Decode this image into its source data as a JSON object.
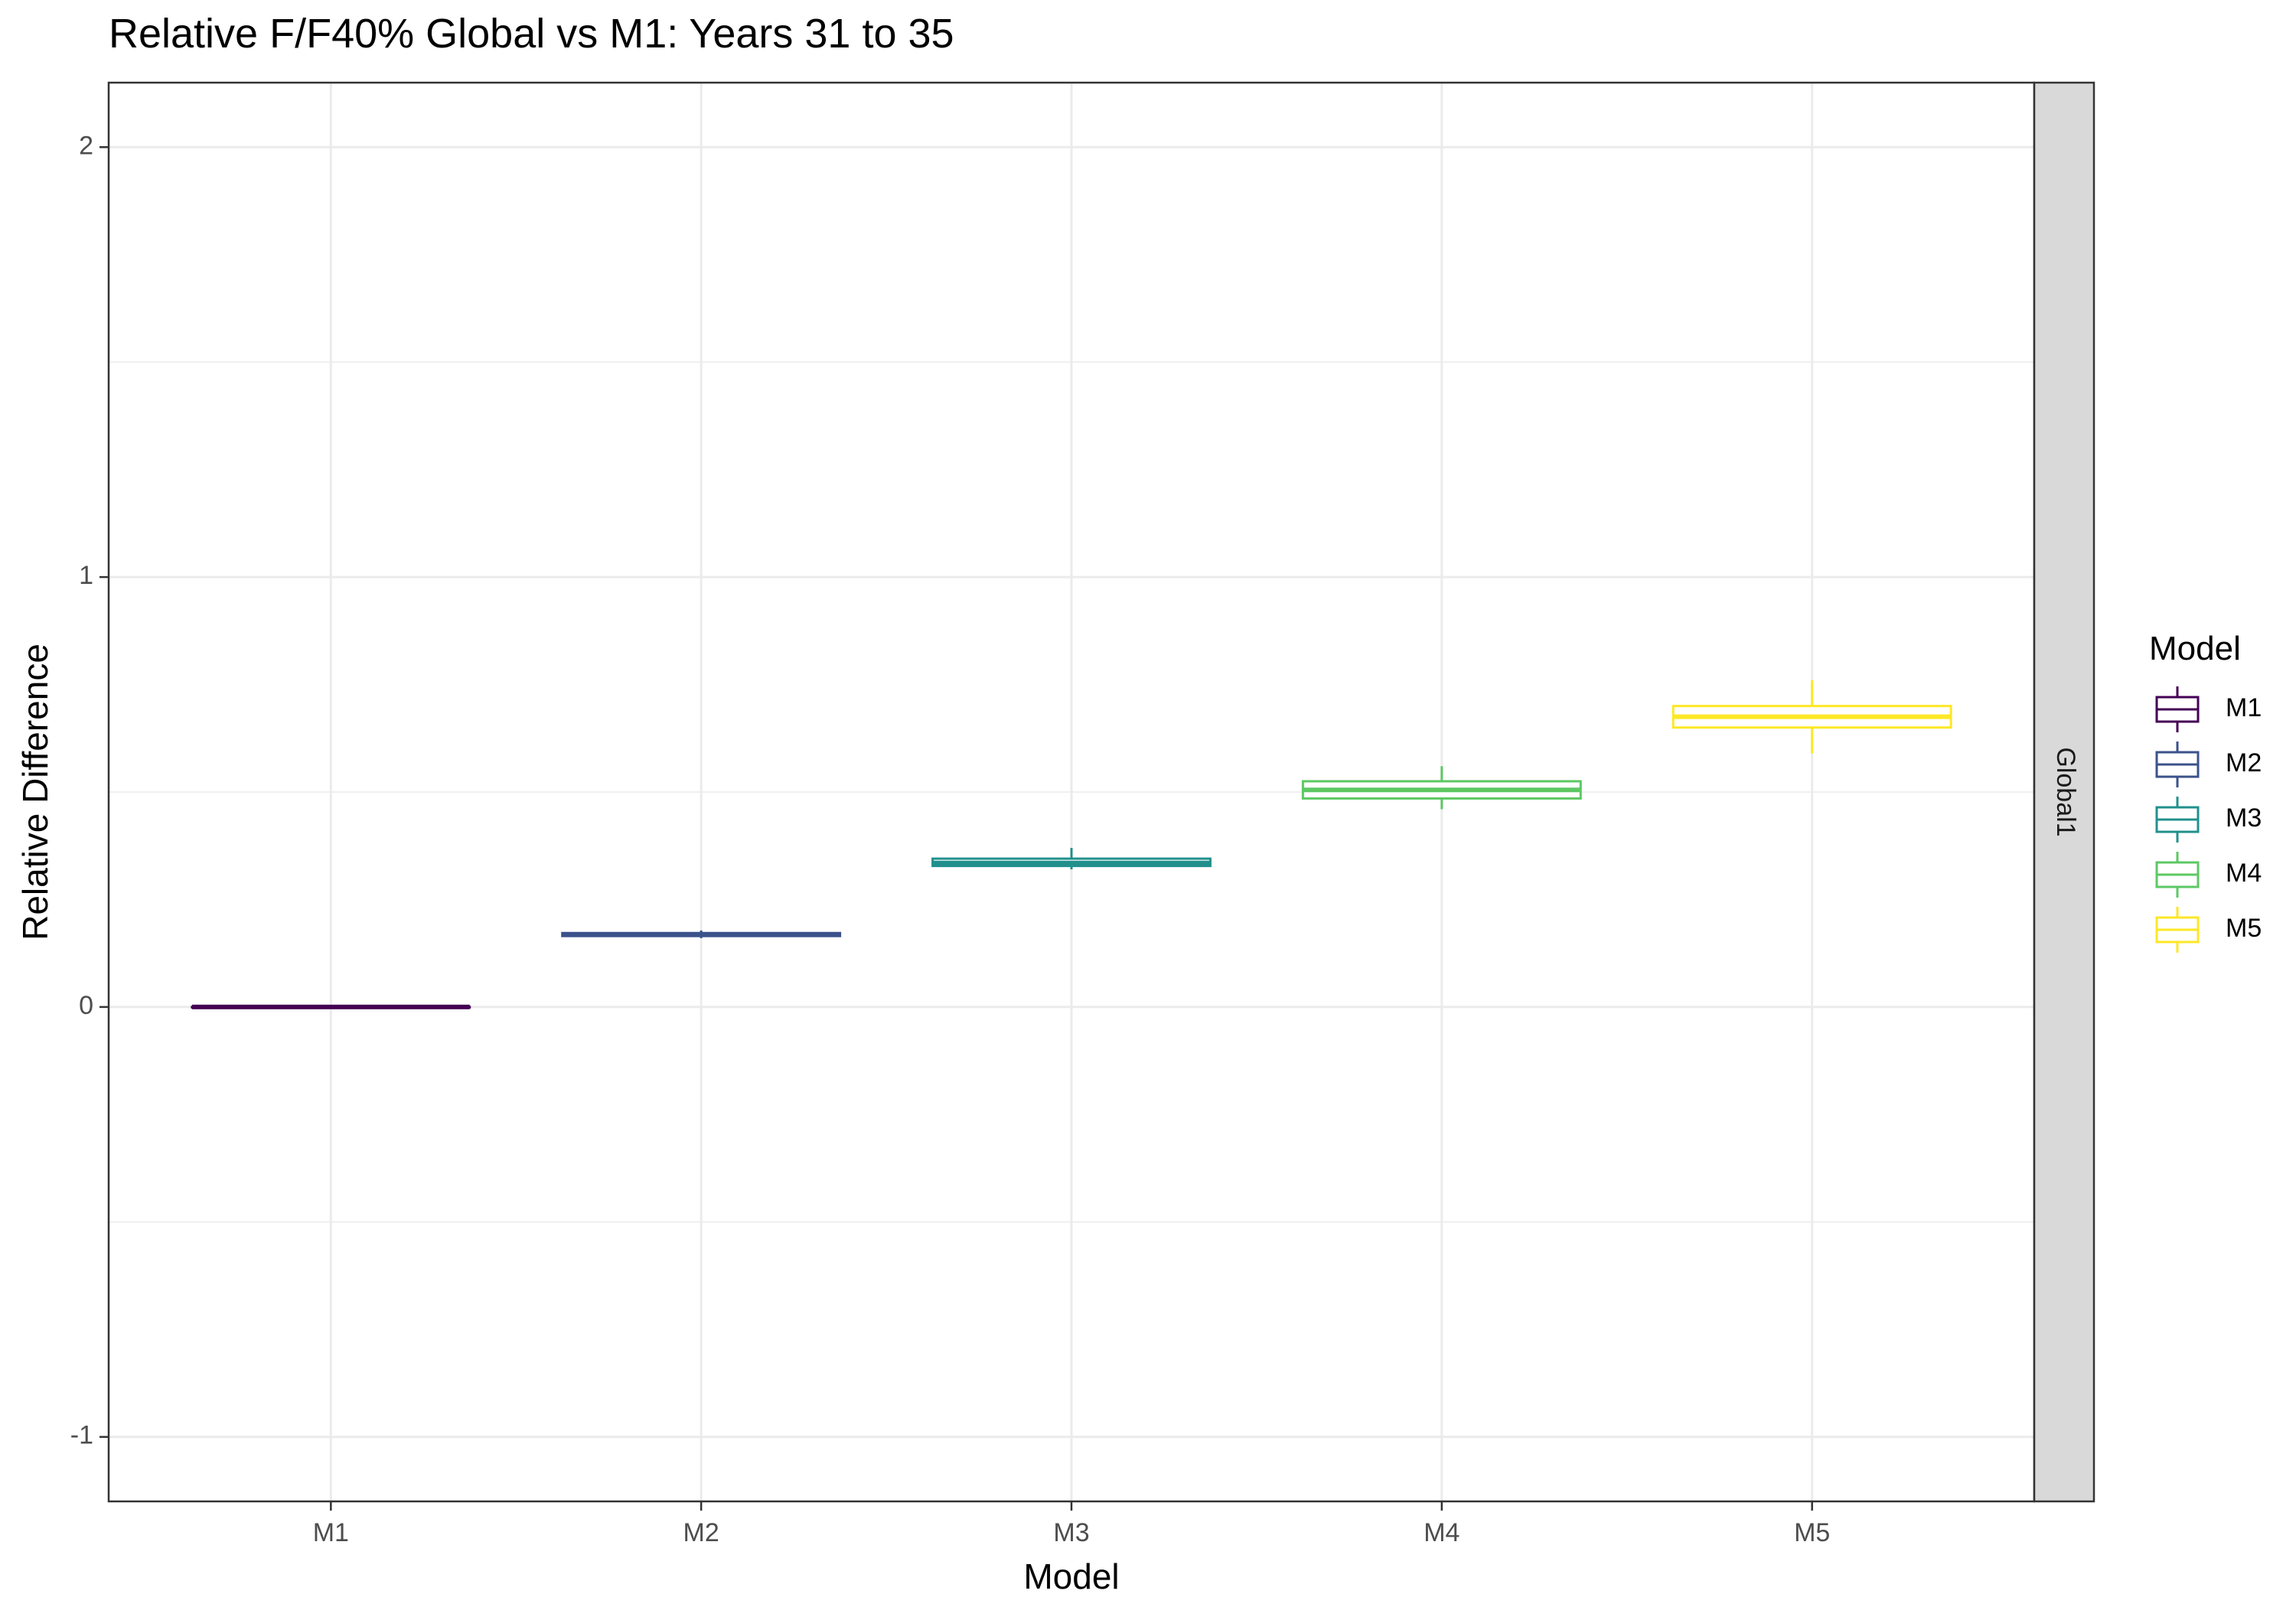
{
  "chart_data": {
    "type": "boxplot",
    "title": "Relative F/F40% Global vs M1: Years 31 to 35",
    "xlabel": "Model",
    "ylabel": "Relative Difference",
    "ylim": [
      -1.15,
      2.15
    ],
    "yticks": [
      -1,
      0,
      1,
      2
    ],
    "grid": true,
    "legend_position": "right",
    "facet_label": "Global1",
    "legend": {
      "title": "Model",
      "entries": [
        "M1",
        "M2",
        "M3",
        "M4",
        "M5"
      ]
    },
    "categories": [
      "M1",
      "M2",
      "M3",
      "M4",
      "M5"
    ],
    "series": [
      {
        "name": "M1",
        "color": "#440154",
        "min": 0.0,
        "q1": 0.0,
        "median": 0.0,
        "q3": 0.0,
        "max": 0.0
      },
      {
        "name": "M2",
        "color": "#3B528B",
        "min": 0.16,
        "q1": 0.165,
        "median": 0.168,
        "q3": 0.172,
        "max": 0.178
      },
      {
        "name": "M3",
        "color": "#21908C",
        "min": 0.32,
        "q1": 0.328,
        "median": 0.335,
        "q3": 0.345,
        "max": 0.37
      },
      {
        "name": "M4",
        "color": "#5DC863",
        "min": 0.46,
        "q1": 0.485,
        "median": 0.505,
        "q3": 0.525,
        "max": 0.56
      },
      {
        "name": "M5",
        "color": "#FDE725",
        "min": 0.59,
        "q1": 0.65,
        "median": 0.675,
        "q3": 0.7,
        "max": 0.76
      }
    ]
  }
}
